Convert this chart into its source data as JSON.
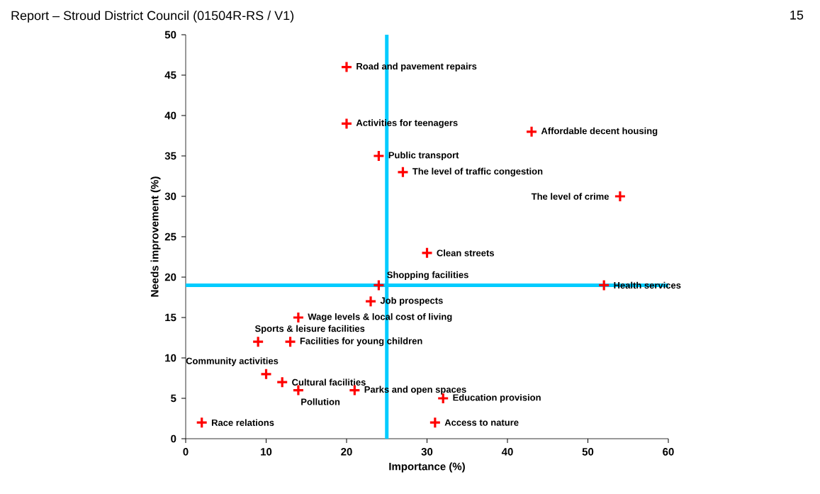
{
  "chart_data": {
    "type": "scatter",
    "xlabel": "Importance (%)",
    "ylabel": "Needs improvement (%)",
    "xlim": [
      0,
      60
    ],
    "ylim": [
      0,
      50
    ],
    "xticks": [
      0,
      10,
      20,
      30,
      40,
      50,
      60
    ],
    "yticks": [
      0,
      5,
      10,
      15,
      20,
      25,
      30,
      35,
      40,
      45,
      50
    ],
    "marker": "cross",
    "series": [
      {
        "color": "#ff0000",
        "x": [
          20,
          20,
          43,
          24,
          27,
          54,
          30,
          24,
          52,
          23,
          14,
          9,
          13,
          10,
          12,
          14,
          21,
          32,
          2,
          31
        ],
        "values": [
          46,
          39,
          38,
          35,
          33,
          30,
          23,
          19,
          19,
          17,
          15,
          12,
          12,
          8,
          7,
          6,
          6,
          5,
          2,
          2
        ]
      }
    ],
    "ref_lines": [
      {
        "axis": "x",
        "value": 25,
        "color": "#00ccff"
      },
      {
        "axis": "y",
        "value": 19,
        "color": "#00ccff"
      }
    ],
    "annotations": [
      {
        "text": "Road and pavement repairs",
        "x": 20,
        "y": 46
      },
      {
        "text": "Activities for teenagers",
        "x": 20,
        "y": 39
      },
      {
        "text": "Affordable decent housing",
        "x": 43,
        "y": 38
      },
      {
        "text": "Public transport",
        "x": 24,
        "y": 35
      },
      {
        "text": "The level of traffic congestion",
        "x": 27,
        "y": 33
      },
      {
        "text": "The level of crime",
        "x": 54,
        "y": 30
      },
      {
        "text": "Clean streets",
        "x": 30,
        "y": 23
      },
      {
        "text": "Shopping facilities",
        "x": 24,
        "y": 19
      },
      {
        "text": "Health services",
        "x": 52,
        "y": 19
      },
      {
        "text": "Job prospects",
        "x": 23,
        "y": 17
      },
      {
        "text": "Wage levels & local cost of living",
        "x": 14,
        "y": 15
      },
      {
        "text": "Sports & leisure facilities",
        "x": 9,
        "y": 12
      },
      {
        "text": "Facilities for young children",
        "x": 13,
        "y": 12
      },
      {
        "text": "Community activities",
        "x": 10,
        "y": 8
      },
      {
        "text": "Cultural facilities",
        "x": 12,
        "y": 7
      },
      {
        "text": "Pollution",
        "x": 14,
        "y": 6
      },
      {
        "text": "Parks and open spaces",
        "x": 21,
        "y": 6
      },
      {
        "text": "Education provision",
        "x": 32,
        "y": 5
      },
      {
        "text": "Race relations",
        "x": 2,
        "y": 2
      },
      {
        "text": "Access to nature",
        "x": 31,
        "y": 2
      },
      "Report – Stroud District Council (01504R-RS / V1)",
      "15"
    ]
  }
}
